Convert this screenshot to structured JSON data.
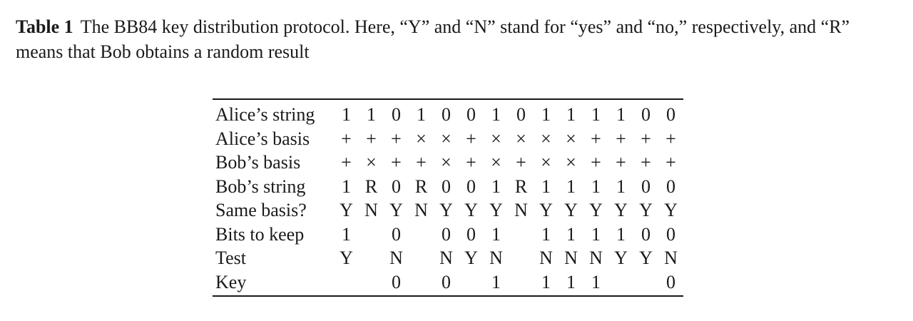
{
  "caption": {
    "label": "Table 1",
    "text": "The BB84 key distribution protocol. Here, “Y” and “N” stand for “yes” and “no,” respectively, and “R” means that Bob obtains a random result"
  },
  "table": {
    "rows": [
      {
        "label": "Alice’s string",
        "cells": [
          "1",
          "1",
          "0",
          "1",
          "0",
          "0",
          "1",
          "0",
          "1",
          "1",
          "1",
          "1",
          "0",
          "0"
        ]
      },
      {
        "label": "Alice’s basis",
        "cells": [
          "+",
          "+",
          "+",
          "×",
          "×",
          "+",
          "×",
          "×",
          "×",
          "×",
          "+",
          "+",
          "+",
          "+"
        ]
      },
      {
        "label": "Bob’s basis",
        "cells": [
          "+",
          "×",
          "+",
          "+",
          "×",
          "+",
          "×",
          "+",
          "×",
          "×",
          "+",
          "+",
          "+",
          "+"
        ]
      },
      {
        "label": "Bob’s string",
        "cells": [
          "1",
          "R",
          "0",
          "R",
          "0",
          "0",
          "1",
          "R",
          "1",
          "1",
          "1",
          "1",
          "0",
          "0"
        ]
      },
      {
        "label": "Same basis?",
        "cells": [
          "Y",
          "N",
          "Y",
          "N",
          "Y",
          "Y",
          "Y",
          "N",
          "Y",
          "Y",
          "Y",
          "Y",
          "Y",
          "Y"
        ]
      },
      {
        "label": "Bits to keep",
        "cells": [
          "1",
          "",
          "0",
          "",
          "0",
          "0",
          "1",
          "",
          "1",
          "1",
          "1",
          "1",
          "0",
          "0"
        ]
      },
      {
        "label": "Test",
        "cells": [
          "Y",
          "",
          "N",
          "",
          "N",
          "Y",
          "N",
          "",
          "N",
          "N",
          "N",
          "Y",
          "Y",
          "N"
        ]
      },
      {
        "label": "Key",
        "cells": [
          "",
          "",
          "0",
          "",
          "0",
          "",
          "1",
          "",
          "1",
          "1",
          "1",
          "",
          "",
          "0"
        ]
      }
    ]
  }
}
